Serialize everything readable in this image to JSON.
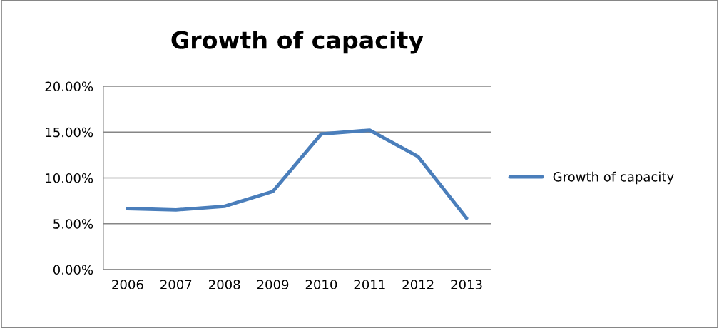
{
  "chart_data": {
    "type": "line",
    "title": "Growth of capacity",
    "categories": [
      "2006",
      "2007",
      "2008",
      "2009",
      "2010",
      "2011",
      "2012",
      "2013"
    ],
    "series": [
      {
        "name": "Growth of capacity",
        "color": "#4a7ebb",
        "values": [
          6.65,
          6.51,
          6.9,
          8.52,
          14.8,
          15.2,
          12.32,
          5.61
        ]
      }
    ],
    "ylim": [
      0,
      20
    ],
    "yticks": [
      {
        "value": 0,
        "label": "0.00%"
      },
      {
        "value": 5,
        "label": "5.00%"
      },
      {
        "value": 10,
        "label": "10.00%"
      },
      {
        "value": 15,
        "label": "15.00%"
      },
      {
        "value": 20,
        "label": "20.00%"
      }
    ],
    "grid": "y",
    "legend": "right",
    "marker": "none",
    "line_style": "solid"
  }
}
